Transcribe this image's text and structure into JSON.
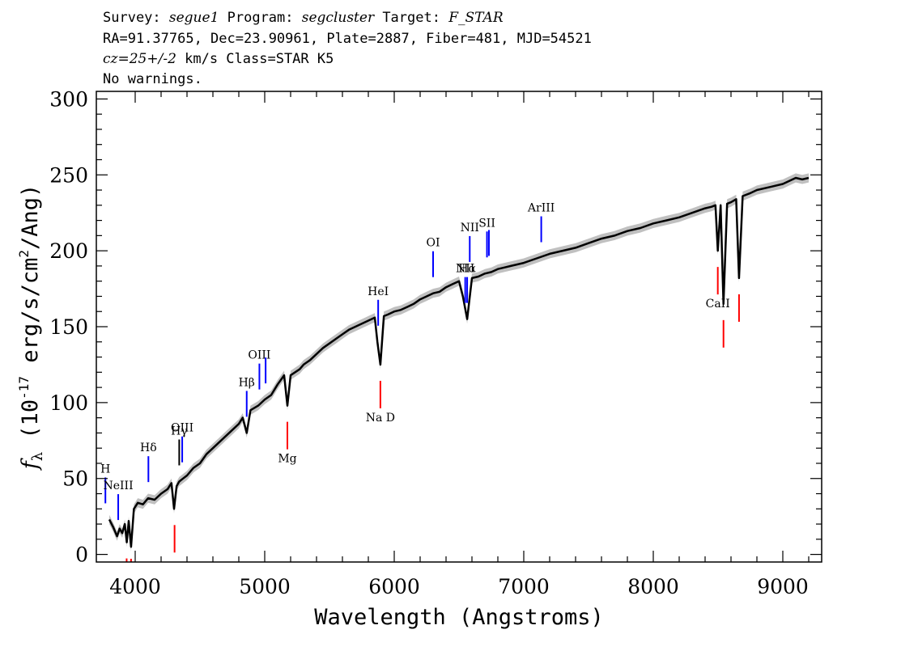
{
  "header": {
    "line1": {
      "survey_label": "Survey: ",
      "survey": "segue1",
      "program_label": " Program: ",
      "program": "segcluster",
      "target_label": " Target: ",
      "target": "F_STAR"
    },
    "line2": "RA=91.37765, Dec=23.90961, Plate=2887, Fiber=481, MJD=54521",
    "line3": {
      "cz": "cz=25+/-2",
      "rest": " km/s Class=STAR K5"
    },
    "line4": "No warnings."
  },
  "chart_data": {
    "type": "line",
    "title": "",
    "xlabel": "Wavelength (Angstroms)",
    "ylabel": "f_λ (10^-17 erg/s/cm^2/Ang)",
    "ylabel_parts": {
      "symbol": "f",
      "sub": "λ",
      "pre": " (10",
      "exp1": "-17",
      "mid": " erg/s/cm",
      "exp2": "2",
      "post": "/Ang)"
    },
    "xlim": [
      3700,
      9300
    ],
    "ylim": [
      -5,
      305
    ],
    "xticks": [
      4000,
      5000,
      6000,
      7000,
      8000,
      9000
    ],
    "xtick_labels": [
      "4000",
      "5000",
      "6000",
      "7000",
      "8000",
      "9000"
    ],
    "yticks": [
      0,
      50,
      100,
      150,
      200,
      250,
      300
    ],
    "ytick_labels": [
      "0",
      "50",
      "100",
      "150",
      "200",
      "250",
      "300"
    ],
    "grid": false,
    "legend": "none",
    "series": [
      {
        "color": "#000000",
        "error_band_color": "#c0c0c0",
        "x": [
          3800,
          3830,
          3860,
          3880,
          3900,
          3920,
          3935,
          3950,
          3968,
          3990,
          4020,
          4060,
          4100,
          4150,
          4200,
          4250,
          4280,
          4300,
          4320,
          4340,
          4370,
          4400,
          4450,
          4500,
          4550,
          4600,
          4650,
          4700,
          4750,
          4800,
          4830,
          4861,
          4890,
          4950,
          5000,
          5050,
          5100,
          5150,
          5175,
          5200,
          5270,
          5300,
          5350,
          5400,
          5450,
          5500,
          5550,
          5600,
          5650,
          5700,
          5750,
          5800,
          5850,
          5870,
          5893,
          5920,
          5950,
          6000,
          6050,
          6100,
          6150,
          6200,
          6250,
          6300,
          6350,
          6400,
          6450,
          6500,
          6530,
          6563,
          6600,
          6650,
          6700,
          6750,
          6800,
          6850,
          6900,
          6950,
          7000,
          7100,
          7200,
          7300,
          7400,
          7500,
          7600,
          7700,
          7800,
          7900,
          8000,
          8100,
          8200,
          8300,
          8400,
          8450,
          8480,
          8498,
          8520,
          8542,
          8570,
          8600,
          8640,
          8662,
          8690,
          8750,
          8800,
          8900,
          9000,
          9050,
          9100,
          9150,
          9200
        ],
        "y": [
          23,
          18,
          12,
          17,
          14,
          20,
          8,
          22,
          5,
          30,
          34,
          33,
          37,
          36,
          40,
          43,
          47,
          30,
          45,
          48,
          50,
          52,
          57,
          60,
          66,
          70,
          74,
          78,
          82,
          86,
          90,
          80,
          95,
          98,
          102,
          105,
          112,
          118,
          98,
          118,
          122,
          125,
          128,
          132,
          136,
          139,
          142,
          145,
          148,
          150,
          152,
          154,
          156,
          140,
          125,
          157,
          158,
          160,
          161,
          163,
          165,
          168,
          170,
          172,
          173,
          176,
          178,
          180,
          170,
          155,
          182,
          183,
          185,
          186,
          188,
          189,
          190,
          191,
          192,
          195,
          198,
          200,
          202,
          205,
          208,
          210,
          213,
          215,
          218,
          220,
          222,
          225,
          228,
          229,
          230,
          200,
          230,
          165,
          231,
          232,
          234,
          182,
          236,
          238,
          240,
          242,
          244,
          246,
          248,
          247,
          248
        ]
      }
    ],
    "emission_lines": [
      {
        "label": "H",
        "wave": 3770,
        "color": "#0000ff"
      },
      {
        "label": "NeIII",
        "wave": 3869,
        "color": "#0000ff"
      },
      {
        "label": "Hδ",
        "wave": 4102,
        "color": "#0000ff"
      },
      {
        "label": "Hγ",
        "wave": 4340,
        "color": "#000000"
      },
      {
        "label": "OIII",
        "wave": 4363,
        "color": "#0000ff"
      },
      {
        "label": "Hβ",
        "wave": 4861,
        "color": "#0000ff"
      },
      {
        "label": "OIII",
        "wave": 4959,
        "color": "#0000ff"
      },
      {
        "label": "",
        "wave": 5007,
        "color": "#0000ff"
      },
      {
        "label": "HeI",
        "wave": 5876,
        "color": "#0000ff"
      },
      {
        "label": "OI",
        "wave": 6300,
        "color": "#0000ff"
      },
      {
        "label": "NII",
        "wave": 6548,
        "color": "#0000ff"
      },
      {
        "label": "Hα",
        "wave": 6563,
        "color": "#0000ff"
      },
      {
        "label": "NII",
        "wave": 6583,
        "color": "#0000ff"
      },
      {
        "label": "SII",
        "wave": 6716,
        "color": "#0000ff"
      },
      {
        "label": "",
        "wave": 6731,
        "color": "#0000ff"
      },
      {
        "label": "ArIII",
        "wave": 7135,
        "color": "#0000ff"
      }
    ],
    "absorption_lines": [
      {
        "label": "",
        "wave": 3934,
        "color": "#ff0000"
      },
      {
        "label": "",
        "wave": 3968,
        "color": "#ff0000"
      },
      {
        "label": "",
        "wave": 4304,
        "color": "#ff0000"
      },
      {
        "label": "Mg",
        "wave": 5175,
        "color": "#ff0000"
      },
      {
        "label": "Na D",
        "wave": 5893,
        "color": "#ff0000"
      },
      {
        "label": "CaII",
        "wave": 8498,
        "color": "#ff0000"
      },
      {
        "label": "",
        "wave": 8542,
        "color": "#ff0000"
      },
      {
        "label": "",
        "wave": 8662,
        "color": "#ff0000"
      }
    ]
  }
}
